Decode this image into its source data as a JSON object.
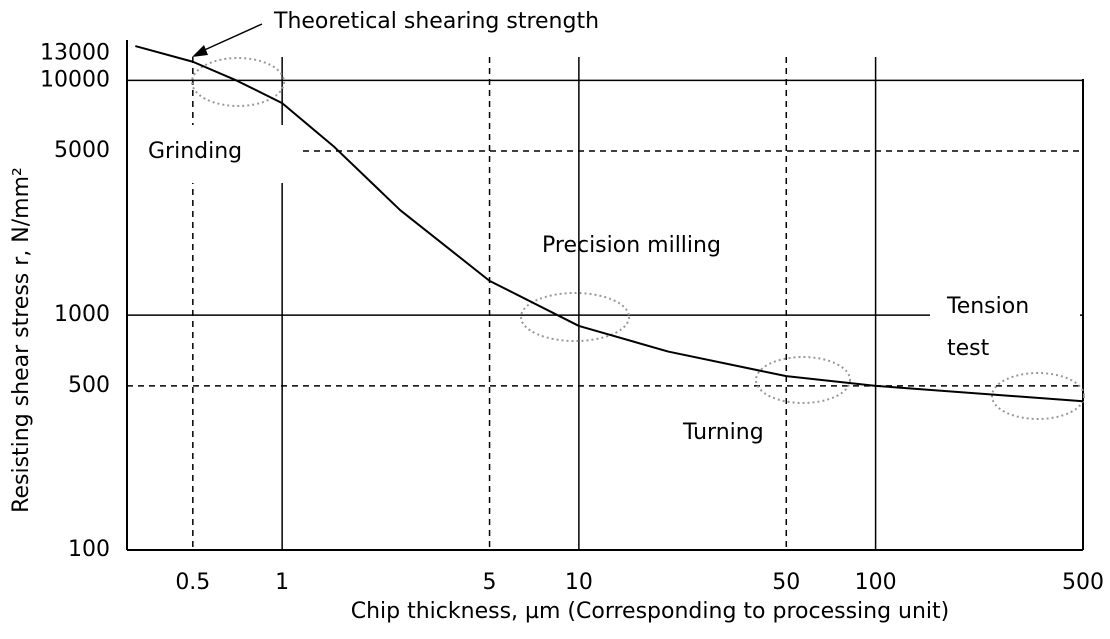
{
  "chart_data": {
    "type": "line",
    "title": null,
    "x_label": "Chip thickness, µm (Corresponding to processing unit)",
    "y_label": "Resisting shear stress r, N/mm²",
    "x": [
      0.32,
      0.5,
      0.7,
      1,
      1.5,
      2.5,
      5,
      10,
      20,
      50,
      100,
      500
    ],
    "series": [
      {
        "name": null,
        "color": "#000000",
        "values": [
          14000,
          12000,
          10000,
          8000,
          5200,
          2800,
          1400,
          900,
          700,
          550,
          500,
          430
        ]
      }
    ],
    "xlim": [
      0.3,
      500
    ],
    "ylim": [
      100,
      15000
    ],
    "xticks": [
      0.5,
      1,
      5,
      10,
      50,
      100,
      500
    ],
    "yticks": [
      100,
      500,
      1000,
      5000,
      10000,
      13000
    ],
    "log_x": true,
    "log_y": true,
    "annotations": [
      "Theoretical shearing strength",
      "Grinding",
      "Precision milling",
      "Tension",
      "test",
      "Turning"
    ]
  }
}
